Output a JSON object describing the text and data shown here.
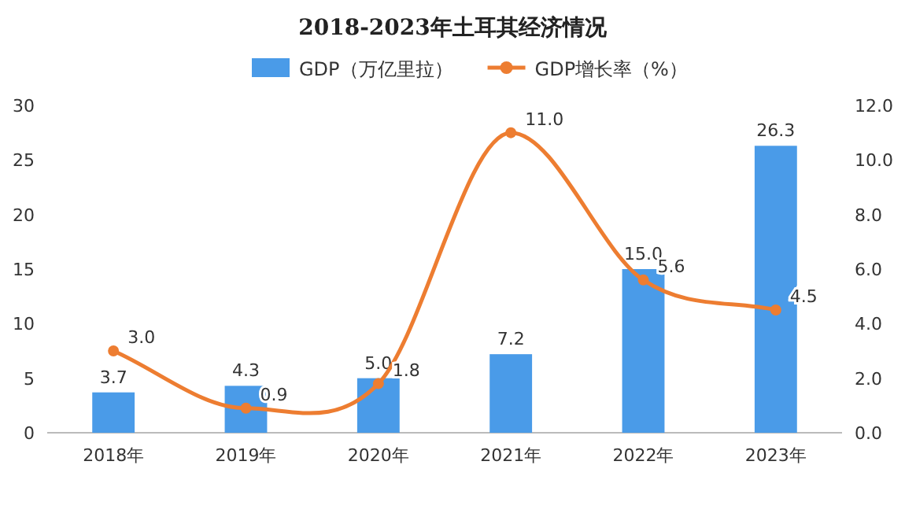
{
  "chart_data": {
    "type": "bar",
    "title": "2018-2023年土耳其经济情况",
    "categories": [
      "2018年",
      "2019年",
      "2020年",
      "2021年",
      "2022年",
      "2023年"
    ],
    "series": [
      {
        "name": "GDP（万亿里拉）",
        "color": "#4a9be8",
        "values": [
          3.7,
          4.3,
          5.0,
          7.2,
          15.0,
          26.3
        ],
        "value_labels": [
          "3.7",
          "4.3",
          "5.0",
          "7.2",
          "15.0",
          "26.3"
        ]
      },
      {
        "name": "GDP增长率（%）",
        "type": "line",
        "axis": "y2",
        "color": "#ed7d31",
        "marker": "circle",
        "values": [
          3.0,
          0.9,
          1.8,
          11.0,
          5.6,
          4.5
        ],
        "value_labels": [
          "3.0",
          "0.9",
          "1.8",
          "11.0",
          "5.6",
          "4.5"
        ]
      }
    ],
    "ylim": [
      0,
      30
    ],
    "yticks": [
      0,
      5,
      10,
      15,
      20,
      25,
      30
    ],
    "y2lim": [
      0,
      12
    ],
    "y2ticks": [
      {
        "value": 0,
        "label": "0.0"
      },
      {
        "value": 2,
        "label": "2.0"
      },
      {
        "value": 4,
        "label": "4.0"
      },
      {
        "value": 6,
        "label": "6.0"
      },
      {
        "value": 8,
        "label": "8.0"
      },
      {
        "value": 10,
        "label": "10.0"
      },
      {
        "value": 12,
        "label": "12.0"
      }
    ],
    "legend": "top",
    "grid": false
  }
}
